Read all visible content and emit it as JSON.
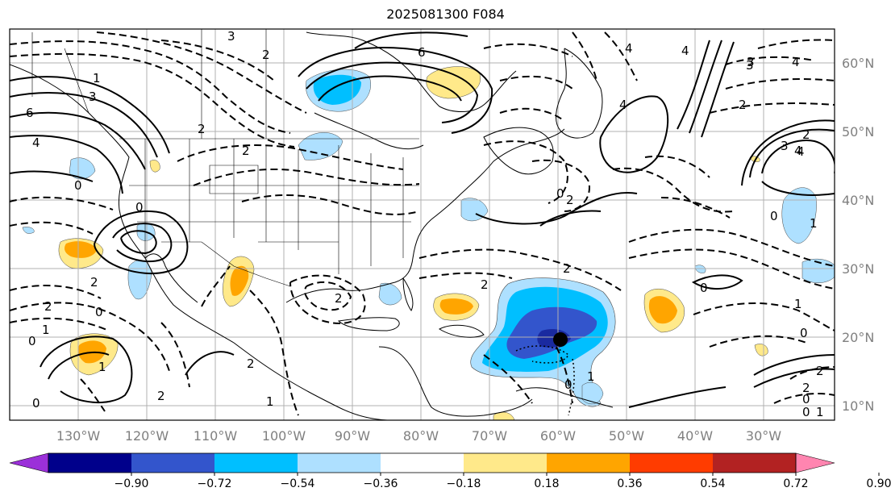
{
  "title": "2025081300 F084",
  "lon_labels": [
    "130°W",
    "120°W",
    "110°W",
    "100°W",
    "90°W",
    "80°W",
    "70°W",
    "60°W",
    "50°W",
    "40°W",
    "30°W"
  ],
  "lat_labels": [
    "60°N",
    "50°N",
    "40°N",
    "30°N",
    "20°N",
    "10°N"
  ],
  "colorbar": {
    "ticks": [
      "−0.90",
      "−0.72",
      "−0.54",
      "−0.36",
      "−0.18",
      "0.18",
      "0.36",
      "0.54",
      "0.72",
      "0.90"
    ],
    "colors": [
      "#9b30d9",
      "#00008b",
      "#3355cc",
      "#00bfff",
      "#aee0ff",
      "#ffffff",
      "#ffe98a",
      "#ffa500",
      "#ff3c00",
      "#b22222",
      "#ff85b0"
    ]
  },
  "storm_marker": {
    "lon": "60°W",
    "lat": "20°N"
  },
  "contour_labels": [
    "1",
    "3",
    "2",
    "6",
    "4",
    "0",
    "2",
    "3",
    "0",
    "2",
    "6",
    "4",
    "2",
    "4",
    "3",
    "2",
    "0",
    "4",
    "2",
    "3",
    "4",
    "0",
    "2",
    "2",
    "0",
    "2",
    "0",
    "1",
    "1",
    "0",
    "2",
    "2",
    "1",
    "0",
    "0",
    "1",
    "1",
    "2",
    "2",
    "0",
    "0",
    "1",
    "2",
    "2",
    "0",
    "4",
    "3",
    "4",
    "1"
  ]
}
